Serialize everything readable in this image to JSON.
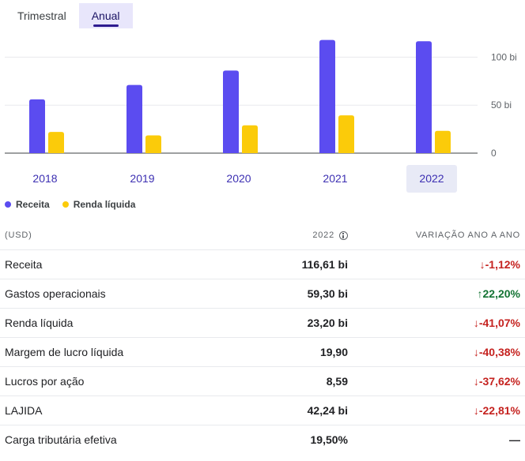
{
  "tabs": [
    {
      "label": "Trimestral",
      "active": false
    },
    {
      "label": "Anual",
      "active": true
    }
  ],
  "chart_data": {
    "type": "bar",
    "categories": [
      "2018",
      "2019",
      "2020",
      "2021",
      "2022"
    ],
    "selected_category": "2022",
    "series": [
      {
        "name": "Receita",
        "color": "#5b4cf0",
        "values": [
          56.0,
          71.0,
          86.0,
          117.9,
          116.61
        ]
      },
      {
        "name": "Renda líquida",
        "color": "#fbcb0a",
        "values": [
          22.1,
          18.5,
          29.0,
          39.4,
          23.2
        ]
      }
    ],
    "y_ticks": [
      {
        "value": 0,
        "label": "0"
      },
      {
        "value": 50,
        "label": "50 bi"
      },
      {
        "value": 100,
        "label": "100 bi"
      }
    ],
    "ylim": [
      0,
      125
    ],
    "grid": true,
    "legend_position": "bottom-left"
  },
  "table": {
    "header": {
      "label": "(USD)",
      "year": "2022",
      "change": "VARIAÇÃO ANO A ANO"
    },
    "rows": [
      {
        "label": "Receita",
        "value": "116,61 bi",
        "change": "-1,12%",
        "direction": "down"
      },
      {
        "label": "Gastos operacionais",
        "value": "59,30 bi",
        "change": "22,20%",
        "direction": "up"
      },
      {
        "label": "Renda líquida",
        "value": "23,20 bi",
        "change": "-41,07%",
        "direction": "down"
      },
      {
        "label": "Margem de lucro líquida",
        "value": "19,90",
        "change": "-40,38%",
        "direction": "down"
      },
      {
        "label": "Lucros por ação",
        "value": "8,59",
        "change": "-37,62%",
        "direction": "down"
      },
      {
        "label": "LAJIDA",
        "value": "42,24 bi",
        "change": "-22,81%",
        "direction": "down"
      },
      {
        "label": "Carga tributária efetiva",
        "value": "19,50%",
        "change": "—",
        "direction": "none"
      }
    ]
  }
}
